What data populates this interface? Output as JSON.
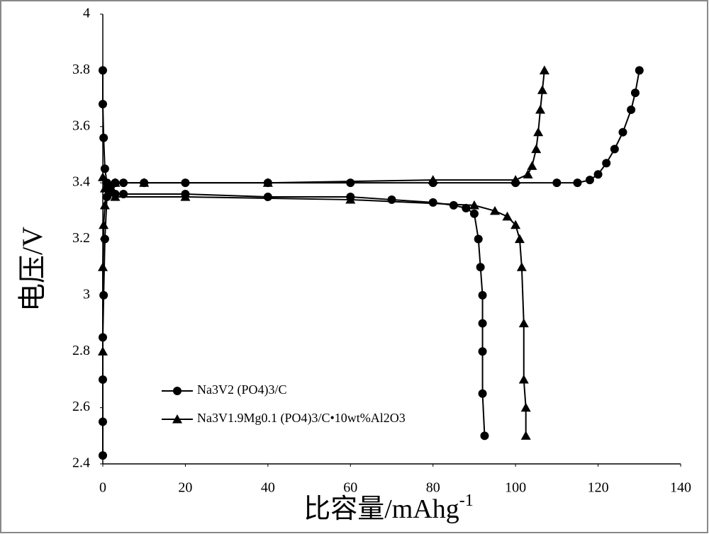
{
  "chart_data": {
    "type": "line",
    "y_label": "电压/V",
    "x_label": "比容量/mAhg",
    "x_label_sup": "-1",
    "xlim": [
      0,
      140
    ],
    "xticks": [
      0,
      20,
      40,
      60,
      80,
      100,
      120,
      140
    ],
    "ylim": [
      2.4,
      4
    ],
    "yticks": [
      2.4,
      2.6,
      2.8,
      3,
      3.2,
      3.4,
      3.6,
      3.8,
      4
    ],
    "series": [
      {
        "name": "Na3V2 (PO4)3/C",
        "color": "#000000",
        "marker": "circle",
        "x": [
          0,
          0,
          0,
          0,
          0.2,
          0.5,
          1,
          2,
          3,
          5,
          10,
          20,
          40,
          60,
          80,
          100,
          110,
          115,
          118,
          120,
          122,
          124,
          126,
          128,
          129,
          130,
          null,
          0,
          0,
          0.2,
          0.5,
          1,
          2,
          3,
          5,
          20,
          40,
          60,
          70,
          80,
          85,
          88,
          90,
          91,
          91.5,
          92,
          92,
          92,
          92,
          92.5
        ],
        "values": [
          2.43,
          2.55,
          2.7,
          2.85,
          3.0,
          3.2,
          3.35,
          3.39,
          3.4,
          3.4,
          3.4,
          3.4,
          3.4,
          3.4,
          3.4,
          3.4,
          3.4,
          3.4,
          3.41,
          3.43,
          3.47,
          3.52,
          3.58,
          3.66,
          3.72,
          3.8,
          null,
          3.8,
          3.68,
          3.56,
          3.45,
          3.4,
          3.37,
          3.36,
          3.36,
          3.36,
          3.35,
          3.35,
          3.34,
          3.33,
          3.32,
          3.31,
          3.29,
          3.2,
          3.1,
          3.0,
          2.9,
          2.8,
          2.65,
          2.5
        ]
      },
      {
        "name": "Na3V1.9Mg0.1 (PO4)3/C•10wt%Al2O3",
        "color": "#000000",
        "marker": "triangle",
        "x": [
          0,
          0,
          0.2,
          0.5,
          1,
          3,
          10,
          40,
          80,
          100,
          103,
          104,
          105,
          105.5,
          106,
          106.5,
          107,
          null,
          0,
          0.5,
          1,
          3,
          20,
          60,
          90,
          95,
          98,
          100,
          101,
          101.5,
          102,
          102,
          102.5,
          102.5
        ],
        "values": [
          2.8,
          3.1,
          3.25,
          3.32,
          3.38,
          3.4,
          3.4,
          3.4,
          3.41,
          3.41,
          3.43,
          3.46,
          3.52,
          3.58,
          3.66,
          3.73,
          3.8,
          null,
          3.42,
          3.38,
          3.36,
          3.35,
          3.35,
          3.34,
          3.32,
          3.3,
          3.28,
          3.25,
          3.2,
          3.1,
          2.9,
          2.7,
          2.6,
          2.5
        ]
      }
    ]
  }
}
